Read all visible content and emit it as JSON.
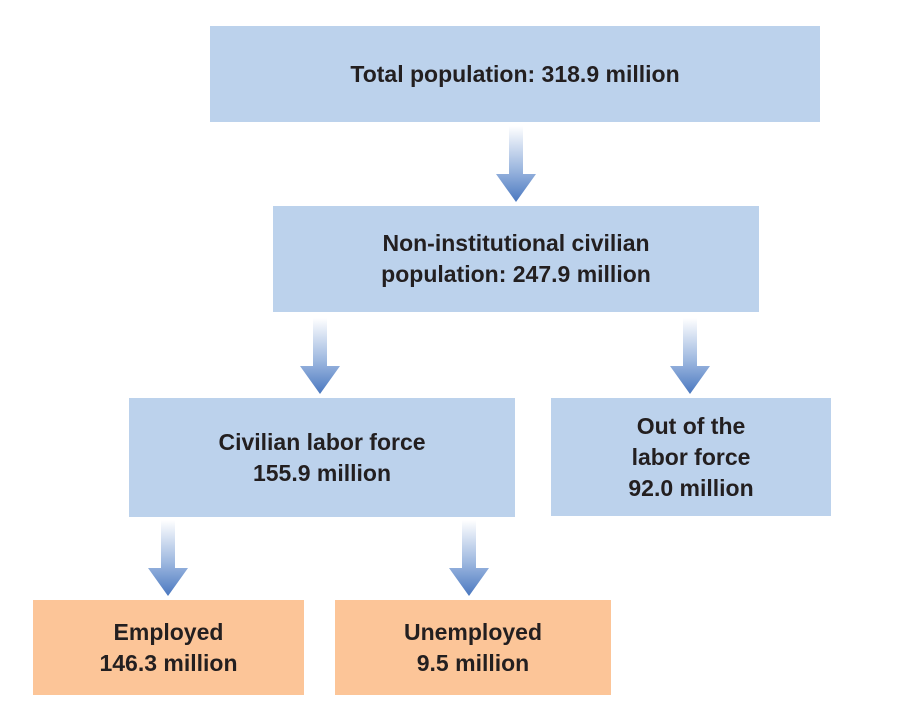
{
  "diagram": {
    "total_population": {
      "lines": [
        "Total population: 318.9 million"
      ]
    },
    "non_institutional": {
      "lines": [
        "Non-institutional civilian",
        "population: 247.9 million"
      ]
    },
    "civilian_labor_force": {
      "lines": [
        "Civilian labor force",
        "155.9 million"
      ]
    },
    "out_of_labor_force": {
      "lines": [
        "Out of the",
        "labor force",
        "92.0 million"
      ]
    },
    "employed": {
      "lines": [
        "Employed",
        "146.3 million"
      ]
    },
    "unemployed": {
      "lines": [
        "Unemployed",
        "9.5 million"
      ]
    }
  },
  "colors": {
    "blue_box": "#bcd2ec",
    "orange_box": "#fcc598",
    "arrow_top": "#ffffff",
    "arrow_bottom": "#4a78c0",
    "text": "#231f20"
  },
  "icons": {
    "arrow": "down-arrow-icon"
  }
}
